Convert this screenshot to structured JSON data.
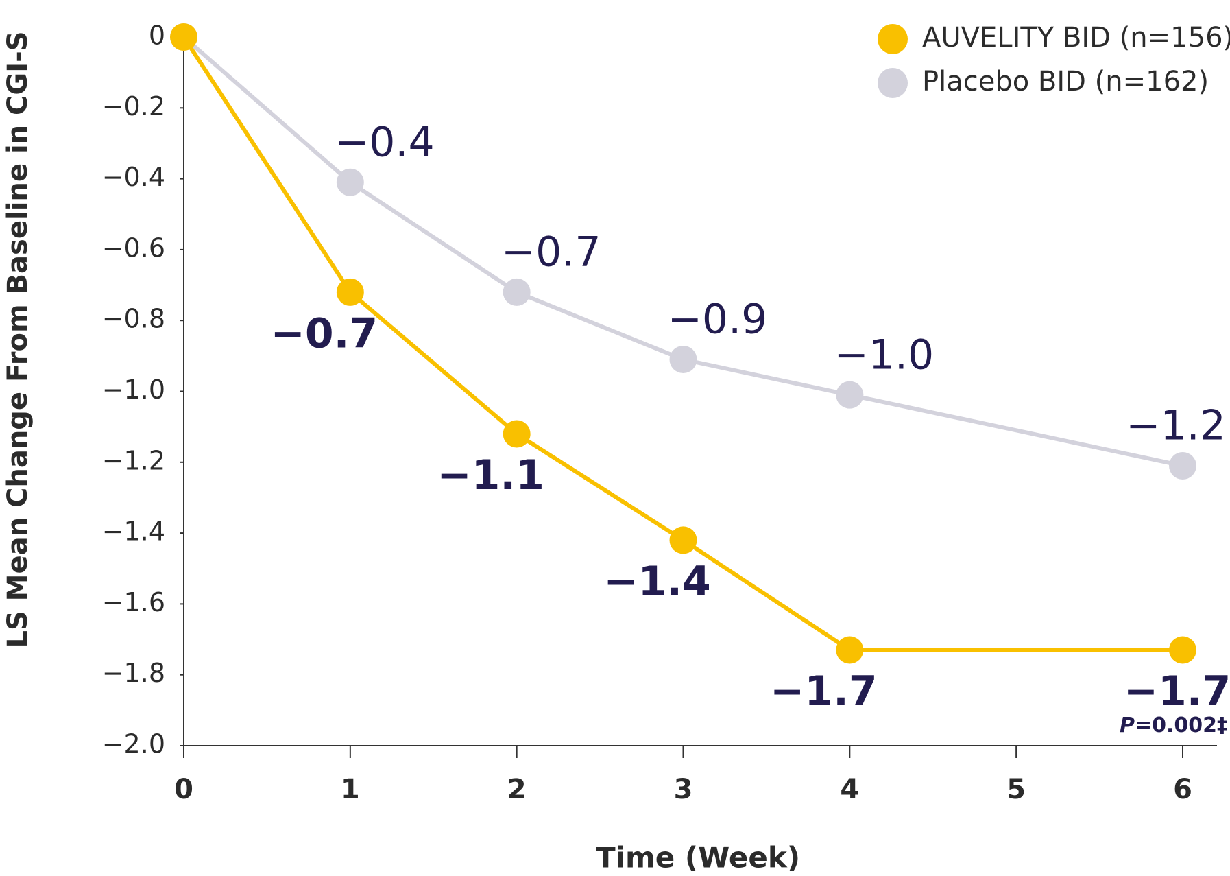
{
  "chart_data": {
    "type": "line",
    "y_label": "LS Mean Change From Baseline in CGI-S",
    "x_label": "Time (Week)",
    "x": [
      0,
      1,
      2,
      3,
      4,
      6
    ],
    "series": [
      {
        "name": "AUVELITY BID (n=156)",
        "color": "#f9c000",
        "values": [
          0,
          -0.72,
          -1.12,
          -1.42,
          -1.73,
          -1.73
        ],
        "value_labels": [
          null,
          "−0.7",
          "−1.1",
          "−1.4",
          "−1.7",
          "−1.7"
        ]
      },
      {
        "name": "Placebo BID (n=162)",
        "color": "#d3d2dc",
        "values": [
          0,
          -0.41,
          -0.72,
          -0.91,
          -1.01,
          -1.21
        ],
        "value_labels": [
          null,
          "−0.4",
          "−0.7",
          "−0.9",
          "−1.0",
          "−1.2"
        ]
      }
    ],
    "annotation_italic": "P",
    "annotation": "=0.002‡",
    "xlim": [
      0,
      6
    ],
    "xticks": [
      0,
      1,
      2,
      3,
      4,
      5,
      6
    ],
    "ylim": [
      -2,
      0
    ],
    "yticks": [
      {
        "value": -2,
        "label": "−2.0"
      },
      {
        "value": -1.8,
        "label": "−1.8"
      },
      {
        "value": -1.6,
        "label": "−1.6"
      },
      {
        "value": -1.4,
        "label": "−1.4"
      },
      {
        "value": -1.2,
        "label": "−1.2"
      },
      {
        "value": -1,
        "label": "−1.0"
      },
      {
        "value": -0.8,
        "label": "−0.8"
      },
      {
        "value": -0.6,
        "label": "−0.6"
      },
      {
        "value": -0.4,
        "label": "−0.4"
      },
      {
        "value": -0.2,
        "label": "−0.2"
      },
      0
    ],
    "grid": false,
    "legend": "top-right"
  }
}
